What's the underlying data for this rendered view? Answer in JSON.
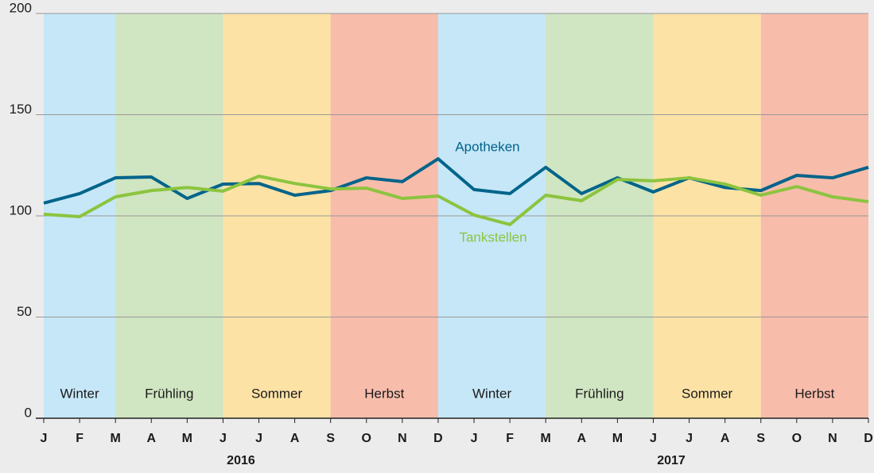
{
  "chart_data": {
    "type": "line",
    "categories": [
      "J",
      "F",
      "M",
      "A",
      "M",
      "J",
      "J",
      "A",
      "S",
      "O",
      "N",
      "D",
      "J",
      "F",
      "M",
      "A",
      "M",
      "J",
      "J",
      "A",
      "S",
      "O",
      "N",
      "D"
    ],
    "series": [
      {
        "name": "Apotheken",
        "color": "#00648a",
        "values": [
          106.3,
          111,
          118.8,
          119.2,
          108.6,
          115.7,
          116,
          110.2,
          112.5,
          118.8,
          116.9,
          128.2,
          113,
          111,
          124,
          111,
          118.8,
          111.8,
          118.8,
          114,
          112.5,
          120,
          118.8,
          124
        ]
      },
      {
        "name": "Tankstellen",
        "color": "#8cc43f",
        "values": [
          100.8,
          99.6,
          109.4,
          112.5,
          114,
          112.2,
          119.6,
          116,
          113.3,
          113.7,
          108.6,
          109.8,
          100.4,
          95.7,
          110.2,
          107.5,
          118,
          117.3,
          118.8,
          115.7,
          110.2,
          114.5,
          109.4,
          107
        ]
      }
    ],
    "bands": [
      {
        "label": "Winter",
        "color": "#c6e7f7",
        "span": [
          0,
          2
        ]
      },
      {
        "label": "Frühling",
        "color": "#d0e5c1",
        "span": [
          2,
          5
        ]
      },
      {
        "label": "Sommer",
        "color": "#fde2a6",
        "span": [
          5,
          8
        ]
      },
      {
        "label": "Herbst",
        "color": "#f8bcab",
        "span": [
          8,
          11
        ]
      },
      {
        "label": "Winter",
        "color": "#c6e7f7",
        "span": [
          11,
          14
        ]
      },
      {
        "label": "Frühling",
        "color": "#d0e5c1",
        "span": [
          14,
          17
        ]
      },
      {
        "label": "Sommer",
        "color": "#fde2a6",
        "span": [
          17,
          20
        ]
      },
      {
        "label": "Herbst",
        "color": "#f8bcab",
        "span": [
          20,
          23
        ]
      }
    ],
    "x_groups": [
      {
        "label": "2016",
        "span": [
          0,
          11
        ]
      },
      {
        "label": "2017",
        "span": [
          12,
          23
        ]
      }
    ],
    "ylim": [
      0,
      200
    ],
    "yticks": [
      0,
      50,
      100,
      150,
      200
    ],
    "grid": true
  }
}
